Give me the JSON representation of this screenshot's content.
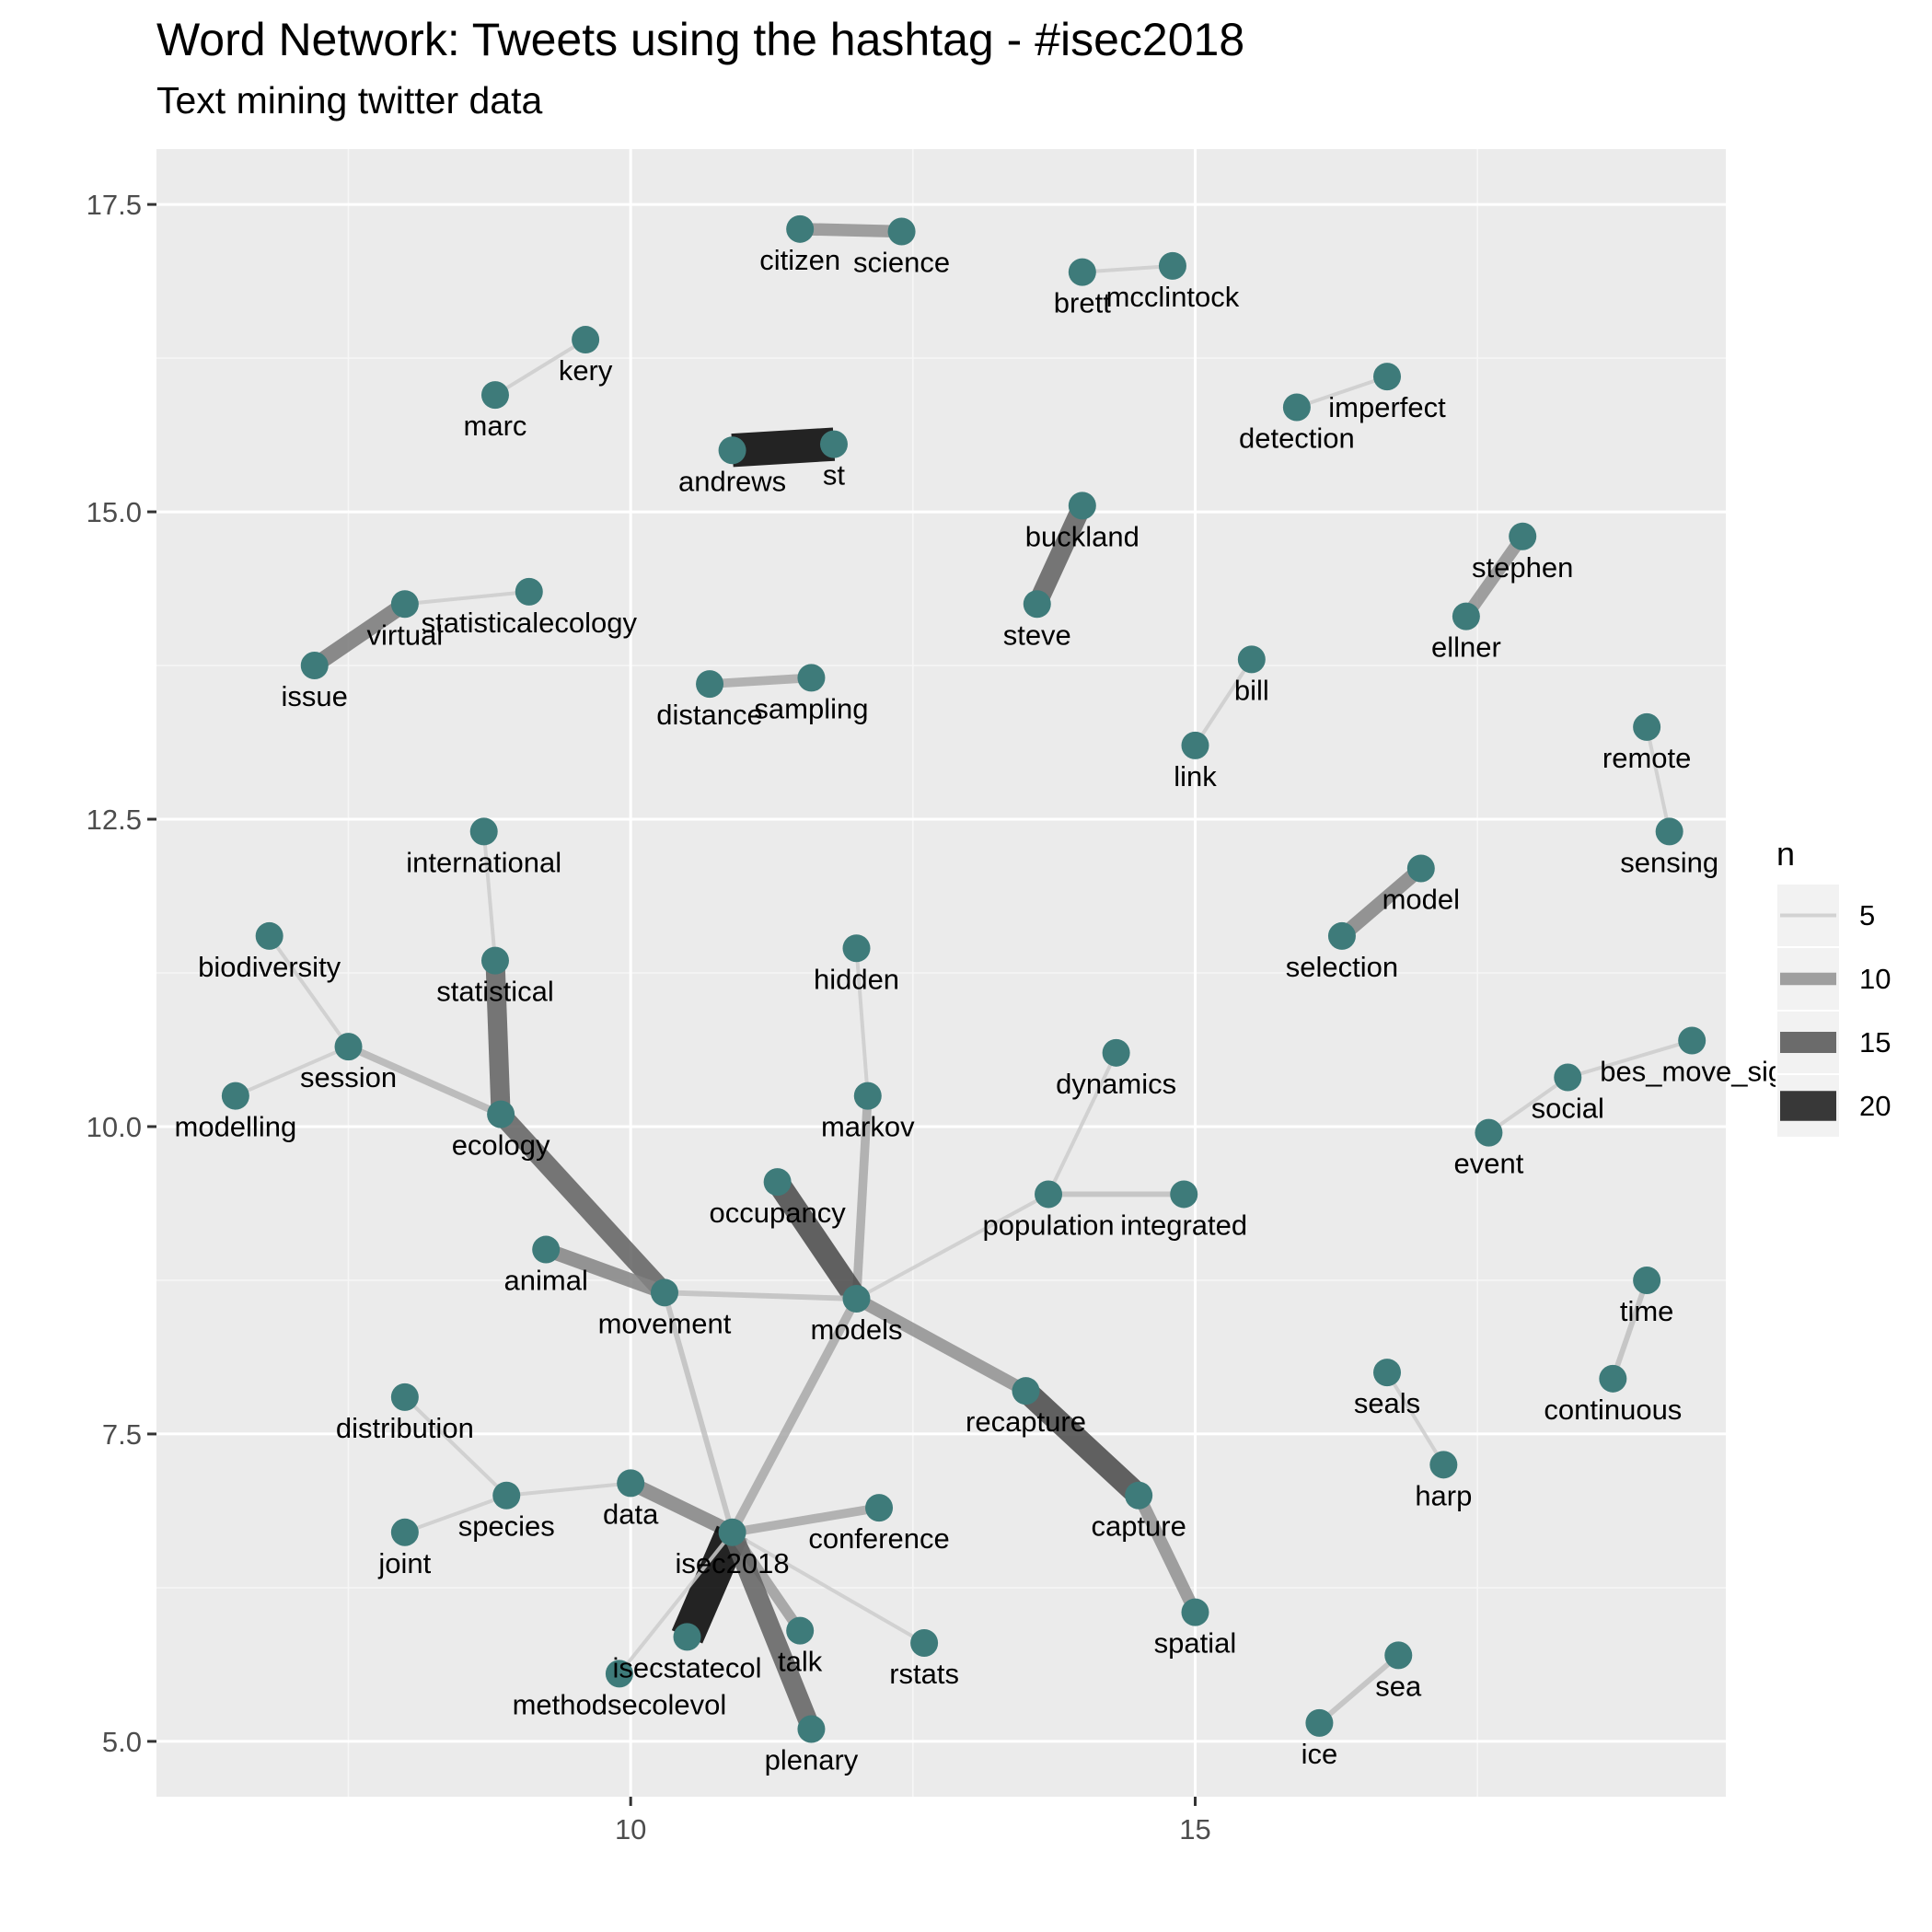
{
  "title": "Word Network: Tweets using the hashtag - #isec2018",
  "subtitle": "Text mining twitter data",
  "chart_data": {
    "type": "network",
    "xlim": [
      5.8,
      19.7
    ],
    "ylim": [
      4.55,
      17.95
    ],
    "x_ticks": [
      10,
      15
    ],
    "y_ticks": [
      "5.0",
      "7.5",
      "10.0",
      "12.5",
      "15.0",
      "17.5"
    ],
    "grid": true,
    "node_color": "#3e7b7a",
    "legend": {
      "title": "n",
      "position": "right",
      "entries": [
        {
          "label": "5",
          "value": 5
        },
        {
          "label": "10",
          "value": 10
        },
        {
          "label": "15",
          "value": 15
        },
        {
          "label": "20",
          "value": 20
        }
      ]
    },
    "nodes": [
      {
        "word": "citizen",
        "x": 11.5,
        "y": 17.3
      },
      {
        "word": "science",
        "x": 12.4,
        "y": 17.28
      },
      {
        "word": "brett",
        "x": 14.0,
        "y": 16.95
      },
      {
        "word": "mcclintock",
        "x": 14.8,
        "y": 17.0
      },
      {
        "word": "kery",
        "x": 9.6,
        "y": 16.4
      },
      {
        "word": "marc",
        "x": 8.8,
        "y": 15.95
      },
      {
        "word": "imperfect",
        "x": 16.7,
        "y": 16.1
      },
      {
        "word": "detection",
        "x": 15.9,
        "y": 15.85
      },
      {
        "word": "andrews",
        "x": 10.9,
        "y": 15.5
      },
      {
        "word": "st",
        "x": 11.8,
        "y": 15.55
      },
      {
        "word": "buckland",
        "x": 14.0,
        "y": 15.05
      },
      {
        "word": "steve",
        "x": 13.6,
        "y": 14.25
      },
      {
        "word": "stephen",
        "x": 17.9,
        "y": 14.8
      },
      {
        "word": "ellner",
        "x": 17.4,
        "y": 14.15
      },
      {
        "word": "statisticalecology",
        "x": 9.1,
        "y": 14.35
      },
      {
        "word": "virtual",
        "x": 8.0,
        "y": 14.25
      },
      {
        "word": "issue",
        "x": 7.2,
        "y": 13.75
      },
      {
        "word": "distance",
        "x": 10.7,
        "y": 13.6
      },
      {
        "word": "sampling",
        "x": 11.6,
        "y": 13.65
      },
      {
        "word": "bill",
        "x": 15.5,
        "y": 13.8
      },
      {
        "word": "link",
        "x": 15.0,
        "y": 13.1
      },
      {
        "word": "remote",
        "x": 19.0,
        "y": 13.25
      },
      {
        "word": "sensing",
        "x": 19.2,
        "y": 12.4
      },
      {
        "word": "international",
        "x": 8.7,
        "y": 12.4
      },
      {
        "word": "model",
        "x": 17.0,
        "y": 12.1
      },
      {
        "word": "selection",
        "x": 16.3,
        "y": 11.55
      },
      {
        "word": "biodiversity",
        "x": 6.8,
        "y": 11.55
      },
      {
        "word": "hidden",
        "x": 12.0,
        "y": 11.45
      },
      {
        "word": "statistical",
        "x": 8.8,
        "y": 11.35
      },
      {
        "word": "session",
        "x": 7.5,
        "y": 10.65
      },
      {
        "word": "dynamics",
        "x": 14.3,
        "y": 10.6
      },
      {
        "word": "bes_move_sig",
        "x": 19.4,
        "y": 10.7
      },
      {
        "word": "social",
        "x": 18.3,
        "y": 10.4
      },
      {
        "word": "markov",
        "x": 12.1,
        "y": 10.25
      },
      {
        "word": "modelling",
        "x": 6.5,
        "y": 10.25
      },
      {
        "word": "ecology",
        "x": 8.85,
        "y": 10.1
      },
      {
        "word": "event",
        "x": 17.6,
        "y": 9.95
      },
      {
        "word": "occupancy",
        "x": 11.3,
        "y": 9.55
      },
      {
        "word": "population",
        "x": 13.7,
        "y": 9.45
      },
      {
        "word": "integrated",
        "x": 14.9,
        "y": 9.45
      },
      {
        "word": "animal",
        "x": 9.25,
        "y": 9.0
      },
      {
        "word": "movement",
        "x": 10.3,
        "y": 8.65
      },
      {
        "word": "models",
        "x": 12.0,
        "y": 8.6
      },
      {
        "word": "time",
        "x": 19.0,
        "y": 8.75
      },
      {
        "word": "recapture",
        "x": 13.5,
        "y": 7.85
      },
      {
        "word": "seals",
        "x": 16.7,
        "y": 8.0
      },
      {
        "word": "continuous",
        "x": 18.7,
        "y": 7.95
      },
      {
        "word": "distribution",
        "x": 8.0,
        "y": 7.8
      },
      {
        "word": "harp",
        "x": 17.2,
        "y": 7.25
      },
      {
        "word": "data",
        "x": 10.0,
        "y": 7.1
      },
      {
        "word": "capture",
        "x": 14.5,
        "y": 7.0
      },
      {
        "word": "species",
        "x": 8.9,
        "y": 7.0
      },
      {
        "word": "conference",
        "x": 12.2,
        "y": 6.9
      },
      {
        "word": "isec2018",
        "x": 10.9,
        "y": 6.7
      },
      {
        "word": "joint",
        "x": 8.0,
        "y": 6.7
      },
      {
        "word": "spatial",
        "x": 15.0,
        "y": 6.05
      },
      {
        "word": "isecstatecol",
        "x": 10.5,
        "y": 5.85
      },
      {
        "word": "talk",
        "x": 11.5,
        "y": 5.9
      },
      {
        "word": "rstats",
        "x": 12.6,
        "y": 5.8
      },
      {
        "word": "methodsecolevol",
        "x": 9.9,
        "y": 5.55
      },
      {
        "word": "sea",
        "x": 16.8,
        "y": 5.7
      },
      {
        "word": "ice",
        "x": 16.1,
        "y": 5.15
      },
      {
        "word": "plenary",
        "x": 11.6,
        "y": 5.1
      }
    ],
    "edges": [
      {
        "from": "citizen",
        "to": "science",
        "n": 10
      },
      {
        "from": "brett",
        "to": "mcclintock",
        "n": 5
      },
      {
        "from": "marc",
        "to": "kery",
        "n": 5
      },
      {
        "from": "detection",
        "to": "imperfect",
        "n": 5
      },
      {
        "from": "andrews",
        "to": "st",
        "n": 22
      },
      {
        "from": "steve",
        "to": "buckland",
        "n": 14
      },
      {
        "from": "ellner",
        "to": "stephen",
        "n": 10
      },
      {
        "from": "virtual",
        "to": "statisticalecology",
        "n": 5
      },
      {
        "from": "issue",
        "to": "virtual",
        "n": 12
      },
      {
        "from": "distance",
        "to": "sampling",
        "n": 8
      },
      {
        "from": "link",
        "to": "bill",
        "n": 5
      },
      {
        "from": "remote",
        "to": "sensing",
        "n": 5
      },
      {
        "from": "international",
        "to": "statistical",
        "n": 5
      },
      {
        "from": "selection",
        "to": "model",
        "n": 11
      },
      {
        "from": "biodiversity",
        "to": "session",
        "n": 5
      },
      {
        "from": "hidden",
        "to": "markov",
        "n": 5
      },
      {
        "from": "statistical",
        "to": "ecology",
        "n": 14
      },
      {
        "from": "session",
        "to": "ecology",
        "n": 7
      },
      {
        "from": "modelling",
        "to": "session",
        "n": 5
      },
      {
        "from": "dynamics",
        "to": "population",
        "n": 5
      },
      {
        "from": "social",
        "to": "bes_move_sig",
        "n": 5
      },
      {
        "from": "event",
        "to": "social",
        "n": 5
      },
      {
        "from": "markov",
        "to": "models",
        "n": 8
      },
      {
        "from": "ecology",
        "to": "movement",
        "n": 14
      },
      {
        "from": "occupancy",
        "to": "models",
        "n": 16
      },
      {
        "from": "population",
        "to": "integrated",
        "n": 6
      },
      {
        "from": "models",
        "to": "population",
        "n": 5
      },
      {
        "from": "animal",
        "to": "movement",
        "n": 11
      },
      {
        "from": "movement",
        "to": "models",
        "n": 6
      },
      {
        "from": "models",
        "to": "recapture",
        "n": 10
      },
      {
        "from": "continuous",
        "to": "time",
        "n": 6
      },
      {
        "from": "seals",
        "to": "harp",
        "n": 5
      },
      {
        "from": "recapture",
        "to": "capture",
        "n": 16
      },
      {
        "from": "capture",
        "to": "spatial",
        "n": 10
      },
      {
        "from": "distribution",
        "to": "species",
        "n": 5
      },
      {
        "from": "species",
        "to": "data",
        "n": 5
      },
      {
        "from": "joint",
        "to": "species",
        "n": 5
      },
      {
        "from": "data",
        "to": "isec2018",
        "n": 11
      },
      {
        "from": "isec2018",
        "to": "conference",
        "n": 8
      },
      {
        "from": "isec2018",
        "to": "models",
        "n": 8
      },
      {
        "from": "movement",
        "to": "isec2018",
        "n": 6
      },
      {
        "from": "isec2018",
        "to": "isecstatecol",
        "n": 22
      },
      {
        "from": "isec2018",
        "to": "talk",
        "n": 9
      },
      {
        "from": "isec2018",
        "to": "rstats",
        "n": 5
      },
      {
        "from": "isec2018",
        "to": "plenary",
        "n": 14
      },
      {
        "from": "methodsecolevol",
        "to": "isec2018",
        "n": 5
      },
      {
        "from": "ice",
        "to": "sea",
        "n": 6
      }
    ]
  }
}
